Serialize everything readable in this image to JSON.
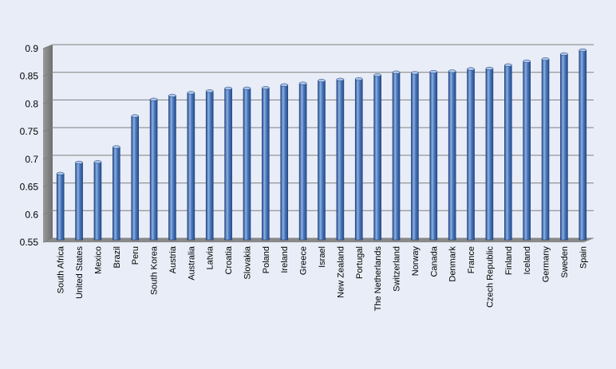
{
  "chart_data": {
    "type": "bar",
    "title": "",
    "xlabel": "",
    "ylabel": "",
    "ylim": [
      0.55,
      0.9
    ],
    "yticks": [
      "0.55",
      "0.6",
      "0.65",
      "0.7",
      "0.75",
      "0.8",
      "0.85",
      "0.9"
    ],
    "grid": true,
    "legend": "none",
    "categories": [
      "South Africa",
      "United States",
      "Mexico",
      "Brazil",
      "Peru",
      "South Korea",
      "Austria",
      "Australia",
      "Latvia",
      "Croatia",
      "Slovakia",
      "Poland",
      "Ireland",
      "Greece",
      "Israel",
      "New Zealand",
      "Portugal",
      "The Netherlands",
      "Switzerland",
      "Norway",
      "Canada",
      "Denmark",
      "France",
      "Czech Republic",
      "Finland",
      "Iceland",
      "Germany",
      "Sweden",
      "Spain"
    ],
    "values": [
      0.667,
      0.687,
      0.688,
      0.715,
      0.771,
      0.801,
      0.808,
      0.813,
      0.816,
      0.821,
      0.821,
      0.822,
      0.827,
      0.83,
      0.835,
      0.837,
      0.838,
      0.845,
      0.85,
      0.849,
      0.851,
      0.852,
      0.856,
      0.857,
      0.863,
      0.87,
      0.874,
      0.883,
      0.89
    ]
  },
  "colors": {
    "background": "#e8edf7",
    "bar_front": "#4a78bd",
    "bar_light": "#8eb0e4",
    "bar_dark": "#264d8c",
    "wall": "#7f7f7f",
    "gridline": "#7f7f7f"
  }
}
